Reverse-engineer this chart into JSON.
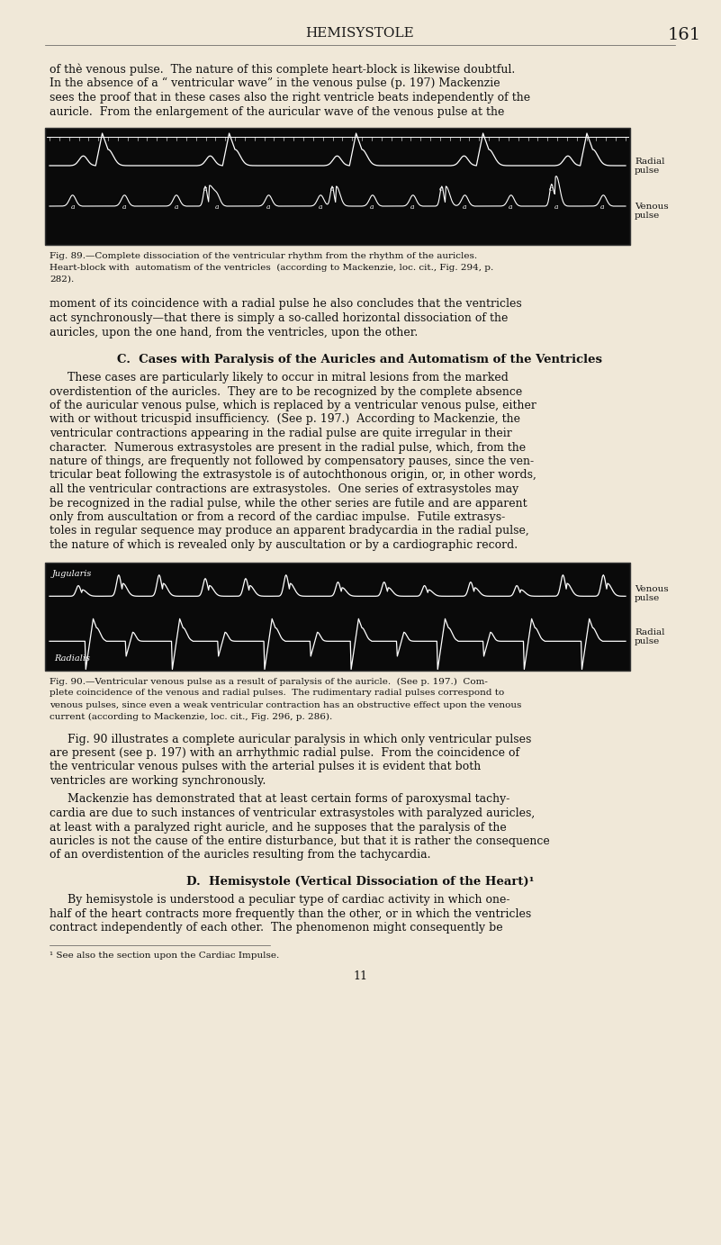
{
  "bg_color": "#f0e8d8",
  "page_bg": "#ede0c8",
  "header_title": "HEMISYSTOLE",
  "header_page": "161",
  "para1": "of thè venous pulse.  The nature of this complete heart-block is likewise doubtful.\nIn the absence of a “ ventricular wave” in the venous pulse (p. 197) Mackenzie\nsees the proof that in these cases also the right ventricle beats independently of the\nauricle.  From the enlargement of the auricular wave of the venous pulse at the",
  "fig89_caption": "Fig. 89.—Complete dissociation of the ventricular rhythm from the rhythm of the auricles.\nHeart-block with  automatism of the ventricles  (according to Mackenzie, loc. cit., Fig. 294, p.\n282).",
  "para2": "moment of its coincidence with a radial pulse he also concludes that the ventricles\nact synchronously—that there is simply a so-called horizontal dissociation of the\nauricles, upon the one hand, from the ventricles, upon the other.",
  "section_c": "C.  Cases with Paralysis of the Auricles and Automatism of the Ventricles",
  "para3": "These cases are particularly likely to occur in mitral lesions from the marked\noverdistention of the auricles.  They are to be recognized by the complete absence\nof the auricular venous pulse, which is replaced by a ventricular venous pulse, either\nwith or without tricuspid insufficiency.  (See p. 197.)  According to Mackenzie, the\nventricular contractions appearing in the radial pulse are quite irregular in their\ncharacter.  Numerous extrasystoles are present in the radial pulse, which, from the\nnature of things, are frequently not followed by compensatory pauses, since the ven-\ntricular beat following the extrasystole is of autochthonous origin, or, in other words,\nall the ventricular contractions are extrasystoles.  One series of extrasystoles may\nbe recognized in the radial pulse, while the other series are futile and are apparent\nonly from auscultation or from a record of the cardiac impulse.  Futile extrasys-\ntoles in regular sequence may produce an apparent bradycardia in the radial pulse,\nthe nature of which is revealed only by auscultation or by a cardiographic record.",
  "fig90_caption": "Fig. 90.—Ventricular venous pulse as a result of paralysis of the auricle.  (See p. 197.)  Com-\nplete coincidence of the venous and radial pulses.  The rudimentary radial pulses correspond to\nvenous pulses, since even a weak ventricular contraction has an obstructive effect upon the venous\ncurrent (according to Mackenzie, loc. cit., Fig. 296, p. 286).",
  "para4": "Fig. 90 illustrates a complete auricular paralysis in which only ventricular pulses\nare present (see p. 197) with an arrhythmic radial pulse.  From the coincidence of\nthe ventricular venous pulses with the arterial pulses it is evident that both\nventricles are working synchronously.",
  "para5": "Mackenzie has demonstrated that at least certain forms of paroxysmal tachy-\ncardia are due to such instances of ventricular extrasystoles with paralyzed auricles,\nat least with a paralyzed right auricle, and he supposes that the paralysis of the\nauricles is not the cause of the entire disturbance, but that it is rather the consequence\nof an overdistention of the auricles resulting from the tachycardia.",
  "section_d": "D.  Hemisystole (Vertical Dissociation of the Heart)¹",
  "para6": "By hemisystole is understood a peculiar type of cardiac activity in which one-\nhalf of the heart contracts more frequently than the other, or in which the ventricles\ncontract independently of each other.  The phenomenon might consequently be",
  "footnote": "¹ See also the section upon the Cardiac Impulse.",
  "page_num_bottom": "11"
}
